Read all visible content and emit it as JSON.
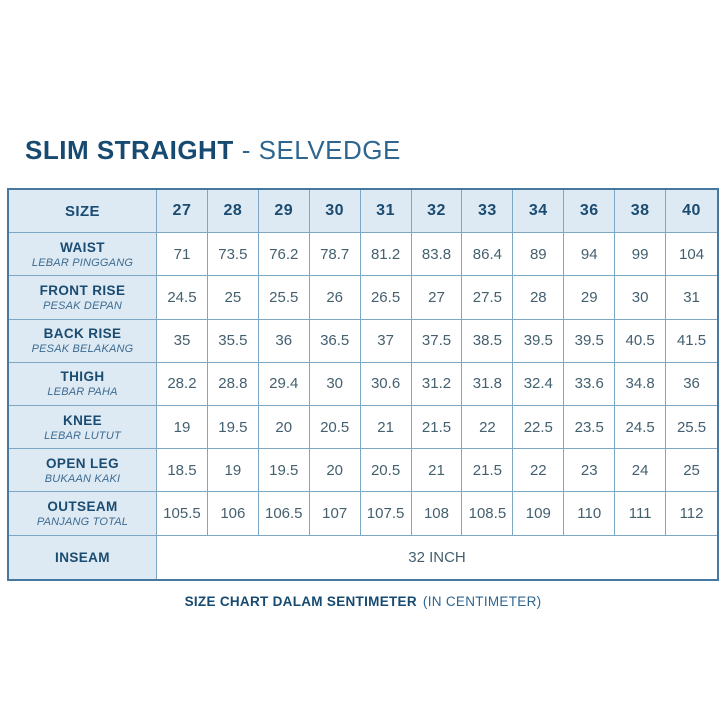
{
  "title": {
    "bold": "SLIM STRAIGHT",
    "regular": "- SELVEDGE"
  },
  "table": {
    "size_header": "SIZE",
    "sizes": [
      "27",
      "28",
      "29",
      "30",
      "31",
      "32",
      "33",
      "34",
      "36",
      "38",
      "40"
    ],
    "rows": [
      {
        "label": "WAIST",
        "sublabel": "LEBAR PINGGANG",
        "values": [
          "71",
          "73.5",
          "76.2",
          "78.7",
          "81.2",
          "83.8",
          "86.4",
          "89",
          "94",
          "99",
          "104"
        ]
      },
      {
        "label": "FRONT RISE",
        "sublabel": "PESAK DEPAN",
        "values": [
          "24.5",
          "25",
          "25.5",
          "26",
          "26.5",
          "27",
          "27.5",
          "28",
          "29",
          "30",
          "31"
        ]
      },
      {
        "label": "BACK RISE",
        "sublabel": "PESAK BELAKANG",
        "values": [
          "35",
          "35.5",
          "36",
          "36.5",
          "37",
          "37.5",
          "38.5",
          "39.5",
          "39.5",
          "40.5",
          "41.5"
        ]
      },
      {
        "label": "THIGH",
        "sublabel": "LEBAR PAHA",
        "values": [
          "28.2",
          "28.8",
          "29.4",
          "30",
          "30.6",
          "31.2",
          "31.8",
          "32.4",
          "33.6",
          "34.8",
          "36"
        ]
      },
      {
        "label": "KNEE",
        "sublabel": "LEBAR LUTUT",
        "values": [
          "19",
          "19.5",
          "20",
          "20.5",
          "21",
          "21.5",
          "22",
          "22.5",
          "23.5",
          "24.5",
          "25.5"
        ]
      },
      {
        "label": "OPEN LEG",
        "sublabel": "BUKAAN KAKI",
        "values": [
          "18.5",
          "19",
          "19.5",
          "20",
          "20.5",
          "21",
          "21.5",
          "22",
          "23",
          "24",
          "25"
        ]
      },
      {
        "label": "OUTSEAM",
        "sublabel": "PANJANG TOTAL",
        "values": [
          "105.5",
          "106",
          "106.5",
          "107",
          "107.5",
          "108",
          "108.5",
          "109",
          "110",
          "111",
          "112"
        ]
      }
    ],
    "inseam": {
      "label": "INSEAM",
      "value": "32 INCH"
    }
  },
  "footer": {
    "bold": "SIZE CHART DALAM SENTIMETER",
    "regular": "(IN CENTIMETER)"
  },
  "colors": {
    "title_dark": "#174a70",
    "title_light": "#2f6690",
    "header_bg": "#dde9f3",
    "border_outer": "#4579a1",
    "border_inner": "#7ca7c5",
    "value_text": "#44606f",
    "sublabel_text": "#3d6b91"
  }
}
